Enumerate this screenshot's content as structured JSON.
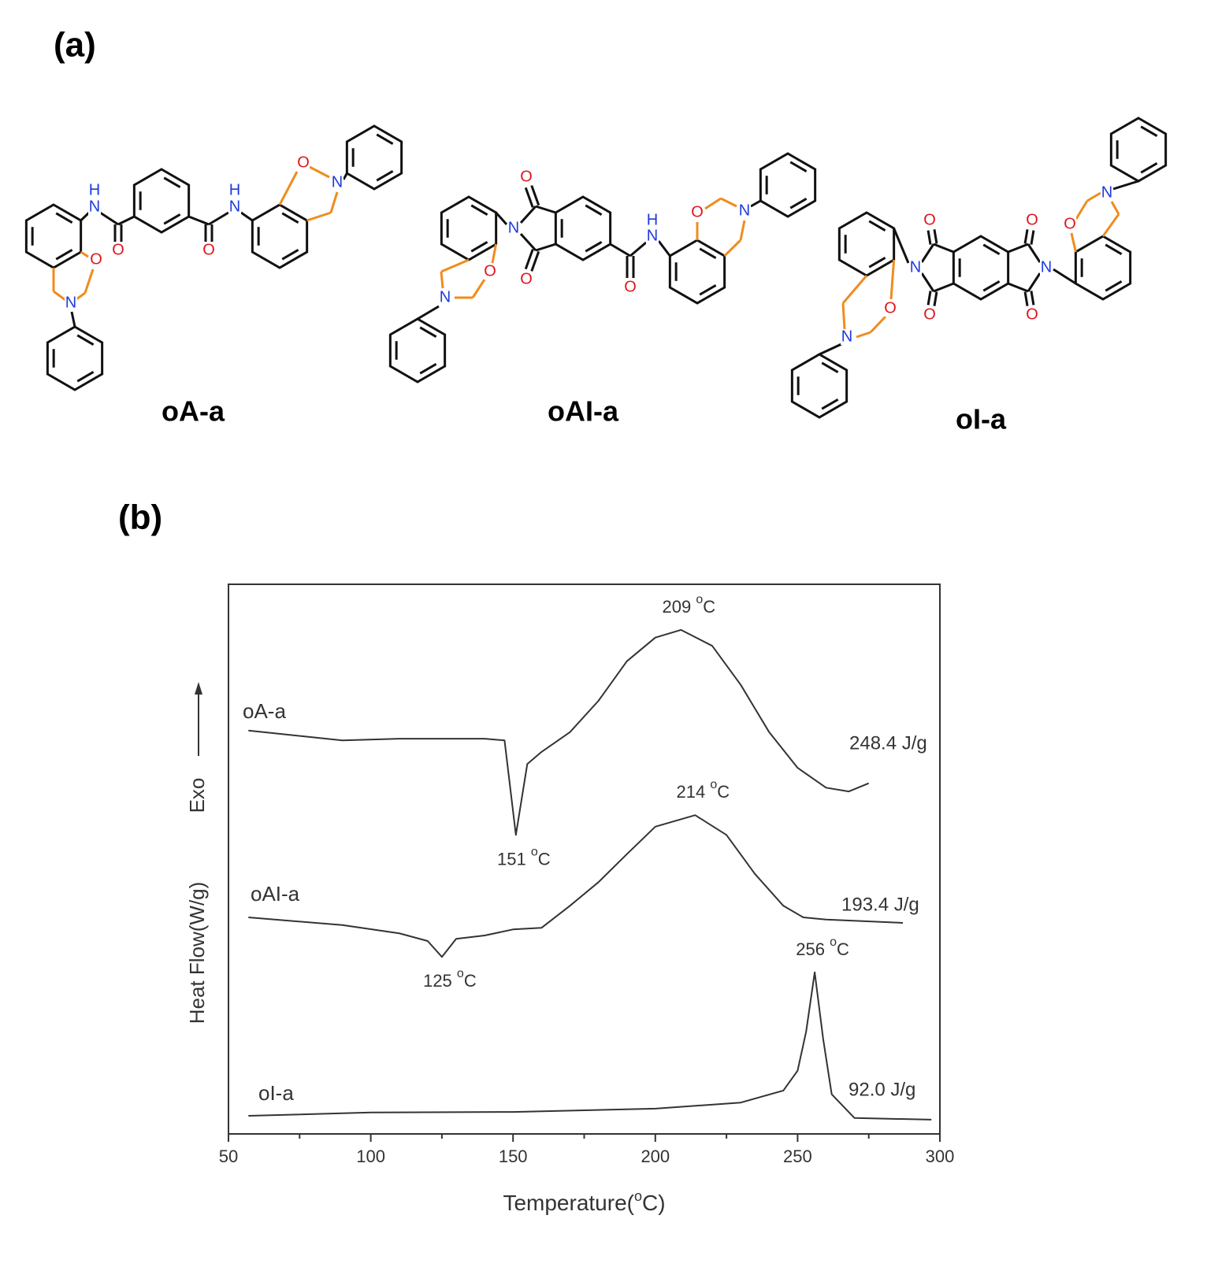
{
  "panel_a": {
    "label": "(a)",
    "structures": [
      {
        "name": "oA-a",
        "atoms": [
          "H",
          "N",
          "O",
          "O",
          "H",
          "N",
          "O",
          "N",
          "O",
          "N"
        ]
      },
      {
        "name": "oAI-a",
        "atoms": [
          "O",
          "N",
          "O",
          "H",
          "N",
          "O",
          "O",
          "N",
          "O",
          "N"
        ]
      },
      {
        "name": "oI-a",
        "atoms": [
          "N",
          "O",
          "O",
          "N",
          "O",
          "O",
          "O",
          "N",
          "O",
          "N"
        ]
      }
    ]
  },
  "panel_b_label": "(b)",
  "chart_data": {
    "type": "line",
    "xlabel": {
      "before": "Temperature(",
      "sup": "o",
      "after": "C)"
    },
    "ylabel": "Heat Flow(W/g)",
    "exo_label": "Exo",
    "xlim": [
      50,
      300
    ],
    "xticks": [
      50,
      100,
      150,
      200,
      250,
      300
    ],
    "xminorticks": [
      75,
      125,
      175,
      225,
      275
    ],
    "ylim": [
      0,
      100
    ],
    "grid": false,
    "series": [
      {
        "name": "oA-a",
        "color": "#333333",
        "enthalpy": "248.4 J/g",
        "x": [
          57,
          90,
          110,
          140,
          147,
          151,
          155,
          160,
          170,
          180,
          190,
          200,
          209,
          220,
          230,
          240,
          250,
          260,
          268,
          275
        ],
        "values": [
          73.4,
          71.6,
          71.9,
          71.9,
          71.6,
          54.4,
          67.3,
          69.5,
          73.1,
          78.8,
          86.0,
          90.3,
          91.7,
          88.8,
          81.7,
          73.1,
          66.6,
          63.0,
          62.3,
          63.8
        ]
      },
      {
        "name": "oAI-a",
        "color": "#333333",
        "enthalpy": "193.4 J/g",
        "x": [
          57,
          90,
          110,
          120,
          125,
          130,
          140,
          150,
          160,
          170,
          180,
          190,
          200,
          214,
          225,
          235,
          245,
          252,
          260,
          287
        ],
        "values": [
          39.4,
          38.0,
          36.5,
          35.1,
          32.2,
          35.5,
          36.1,
          37.2,
          37.5,
          41.5,
          45.8,
          50.9,
          55.9,
          58.0,
          54.4,
          47.3,
          41.5,
          39.4,
          39.0,
          38.4
        ]
      },
      {
        "name": "oI-a",
        "color": "#333333",
        "enthalpy": "92.0 J/g",
        "x": [
          57,
          100,
          150,
          200,
          230,
          245,
          250,
          253,
          256,
          259,
          262,
          270,
          297
        ],
        "values": [
          3.3,
          3.9,
          4.0,
          4.6,
          5.7,
          7.9,
          11.5,
          18.6,
          29.4,
          17.2,
          7.2,
          2.9,
          2.6
        ]
      }
    ],
    "annotations": [
      {
        "series": 0,
        "x": 209,
        "sup": "o",
        "unit": "C",
        "kind": "peak"
      },
      {
        "series": 0,
        "x": 151,
        "sup": "o",
        "unit": "C",
        "kind": "dip"
      },
      {
        "series": 1,
        "x": 214,
        "sup": "o",
        "unit": "C",
        "kind": "peak"
      },
      {
        "series": 1,
        "x": 125,
        "sup": "o",
        "unit": "C",
        "kind": "dip"
      },
      {
        "series": 2,
        "x": 256,
        "sup": "o",
        "unit": "C",
        "kind": "peak"
      }
    ]
  }
}
